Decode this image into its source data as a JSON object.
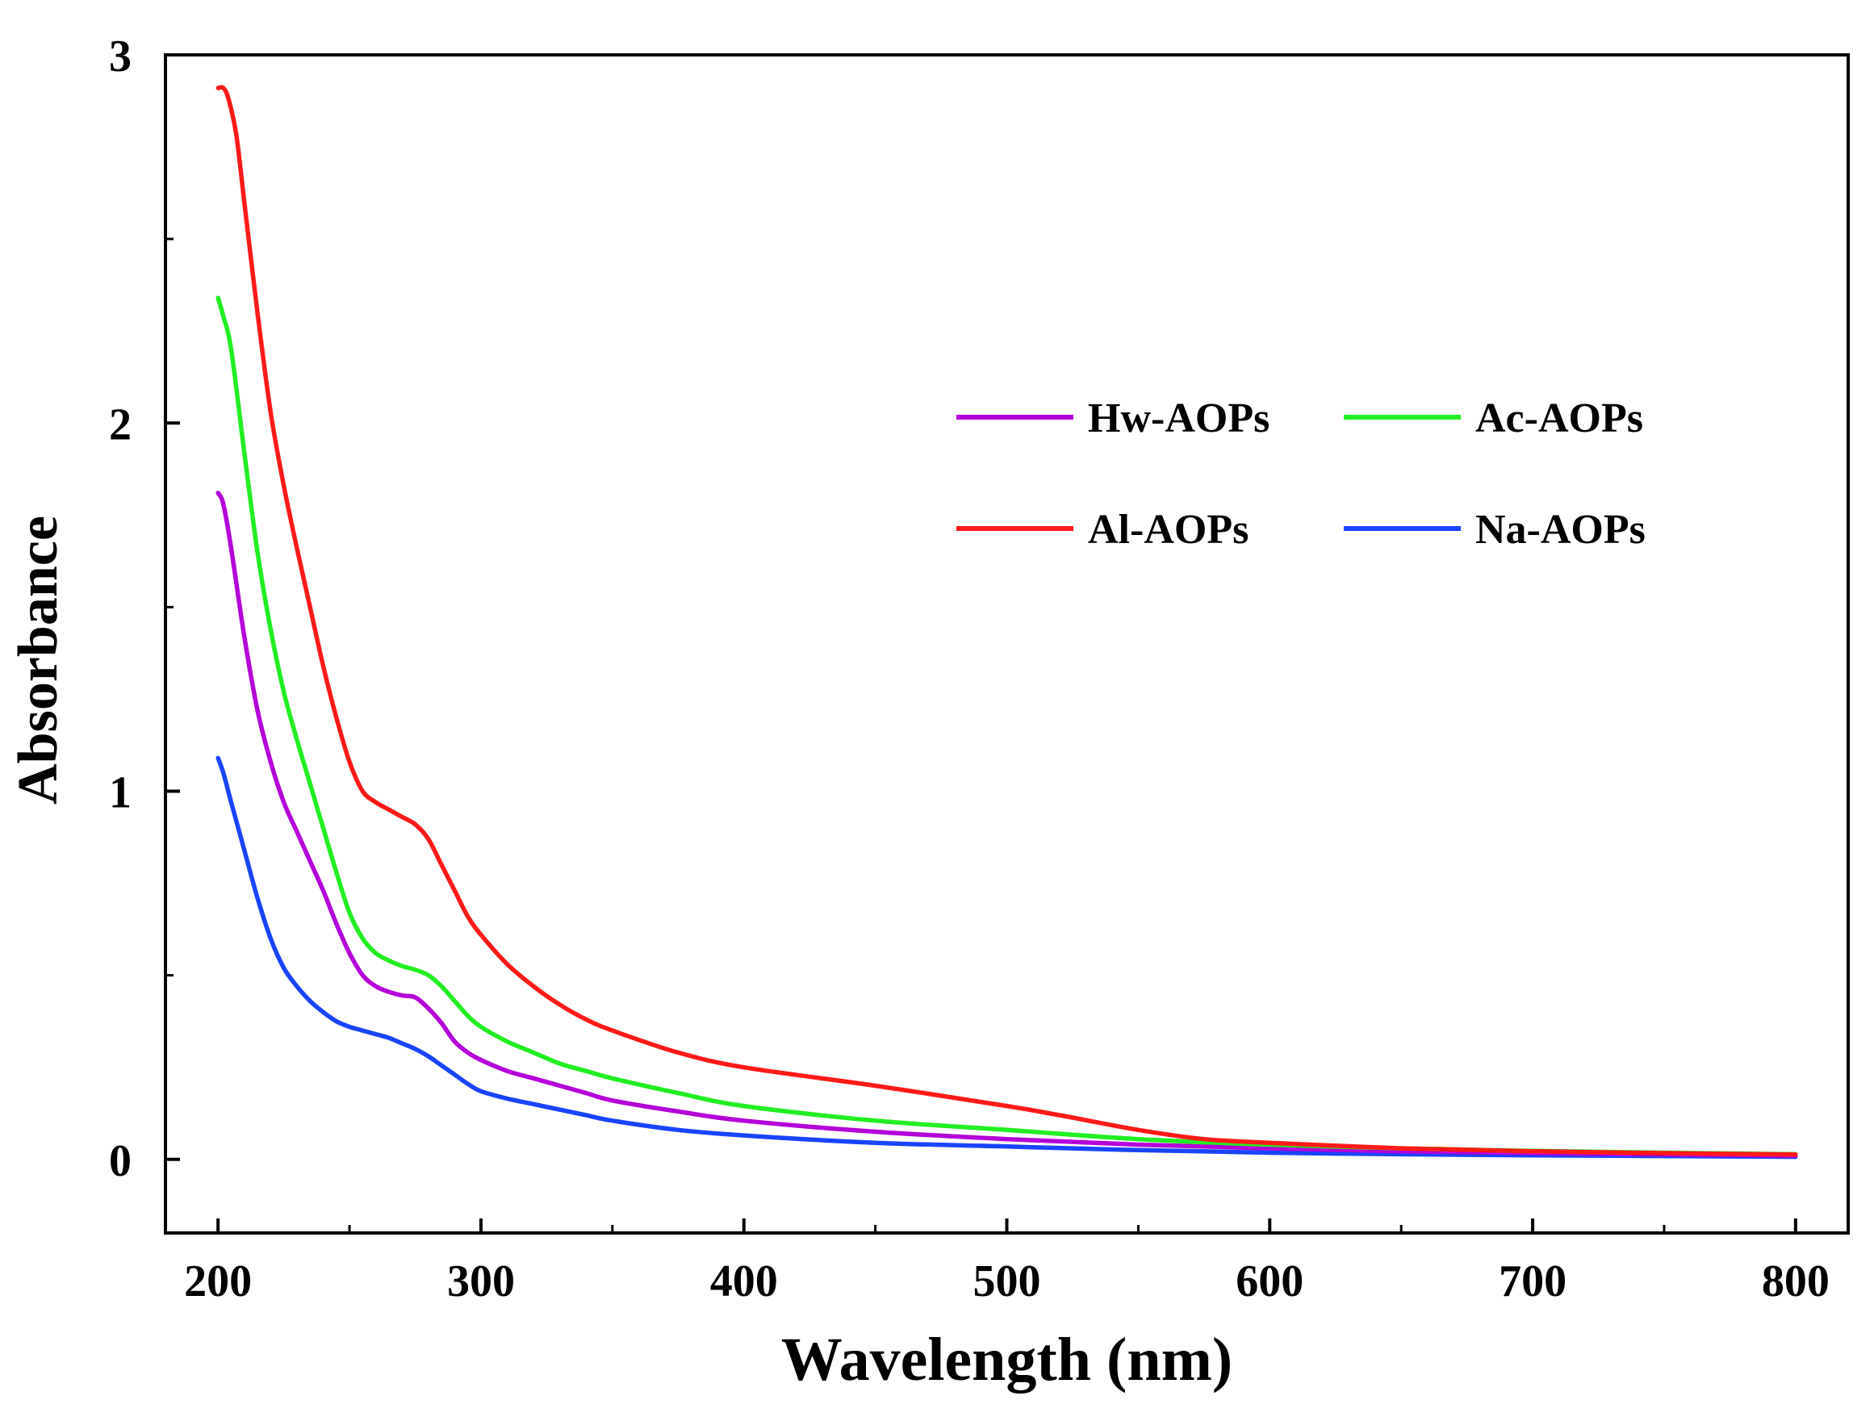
{
  "chart_data": {
    "type": "line",
    "title": "",
    "xlabel": "Wavelength (nm)",
    "ylabel": "Absorbance",
    "xlim": [
      180,
      820
    ],
    "ylim": [
      -0.2,
      3.0
    ],
    "xticks": [
      200,
      300,
      400,
      500,
      600,
      700,
      800
    ],
    "xtick_labels": [
      "200",
      "300",
      "400",
      "500",
      "600",
      "700",
      "800"
    ],
    "yticks": [
      0,
      1,
      2,
      3
    ],
    "ytick_labels": [
      "0",
      "1",
      "2",
      "3"
    ],
    "legend_position": "top-right",
    "grid": false,
    "series": [
      {
        "name": "Hw-AOPs",
        "color": "#b300d9",
        "x": [
          200,
          202,
          205,
          210,
          215,
          220,
          225,
          230,
          235,
          240,
          245,
          250,
          255,
          260,
          265,
          270,
          275,
          280,
          285,
          290,
          295,
          300,
          310,
          320,
          330,
          340,
          350,
          375,
          400,
          450,
          500,
          550,
          600,
          650,
          700,
          750,
          800
        ],
        "values": [
          1.81,
          1.78,
          1.66,
          1.42,
          1.22,
          1.08,
          0.97,
          0.89,
          0.81,
          0.73,
          0.64,
          0.56,
          0.5,
          0.47,
          0.455,
          0.445,
          0.44,
          0.41,
          0.37,
          0.32,
          0.29,
          0.27,
          0.24,
          0.22,
          0.2,
          0.18,
          0.16,
          0.13,
          0.105,
          0.075,
          0.055,
          0.04,
          0.03,
          0.022,
          0.017,
          0.013,
          0.01
        ]
      },
      {
        "name": "Ac-AOPs",
        "color": "#22ee22",
        "x": [
          200,
          202,
          205,
          210,
          215,
          220,
          225,
          230,
          235,
          240,
          245,
          250,
          255,
          260,
          265,
          270,
          275,
          280,
          285,
          290,
          295,
          300,
          310,
          320,
          330,
          340,
          350,
          375,
          400,
          450,
          500,
          550,
          600,
          650,
          700,
          750,
          800
        ],
        "values": [
          2.34,
          2.29,
          2.2,
          1.92,
          1.65,
          1.44,
          1.27,
          1.14,
          1.02,
          0.9,
          0.78,
          0.67,
          0.6,
          0.56,
          0.54,
          0.525,
          0.515,
          0.5,
          0.47,
          0.43,
          0.39,
          0.36,
          0.32,
          0.29,
          0.26,
          0.24,
          0.22,
          0.18,
          0.145,
          0.105,
          0.08,
          0.055,
          0.04,
          0.03,
          0.023,
          0.018,
          0.014
        ]
      },
      {
        "name": "Al-AOPs",
        "color": "#ff1a1a",
        "x": [
          200,
          202,
          204,
          207,
          210,
          215,
          220,
          225,
          230,
          235,
          240,
          245,
          250,
          255,
          260,
          265,
          270,
          275,
          280,
          285,
          290,
          295,
          300,
          310,
          320,
          330,
          340,
          350,
          375,
          400,
          450,
          500,
          520,
          550,
          575,
          600,
          650,
          700,
          750,
          800
        ],
        "values": [
          2.91,
          2.91,
          2.88,
          2.78,
          2.6,
          2.3,
          2.03,
          1.83,
          1.66,
          1.5,
          1.34,
          1.2,
          1.08,
          1.0,
          0.97,
          0.95,
          0.93,
          0.91,
          0.87,
          0.8,
          0.73,
          0.66,
          0.61,
          0.53,
          0.47,
          0.42,
          0.38,
          0.35,
          0.29,
          0.25,
          0.2,
          0.145,
          0.12,
          0.08,
          0.055,
          0.045,
          0.03,
          0.022,
          0.017,
          0.013
        ]
      },
      {
        "name": "Na-AOPs",
        "color": "#1a44ff",
        "x": [
          200,
          202,
          205,
          210,
          215,
          220,
          225,
          230,
          235,
          240,
          245,
          250,
          255,
          260,
          265,
          270,
          275,
          280,
          285,
          290,
          295,
          300,
          310,
          320,
          330,
          340,
          350,
          375,
          400,
          450,
          500,
          550,
          600,
          650,
          700,
          750,
          800
        ],
        "values": [
          1.09,
          1.05,
          0.97,
          0.84,
          0.71,
          0.6,
          0.52,
          0.47,
          0.43,
          0.4,
          0.375,
          0.36,
          0.35,
          0.34,
          0.33,
          0.315,
          0.3,
          0.28,
          0.255,
          0.23,
          0.205,
          0.185,
          0.165,
          0.15,
          0.135,
          0.12,
          0.105,
          0.08,
          0.065,
          0.045,
          0.035,
          0.025,
          0.018,
          0.014,
          0.011,
          0.009,
          0.007
        ]
      }
    ]
  }
}
